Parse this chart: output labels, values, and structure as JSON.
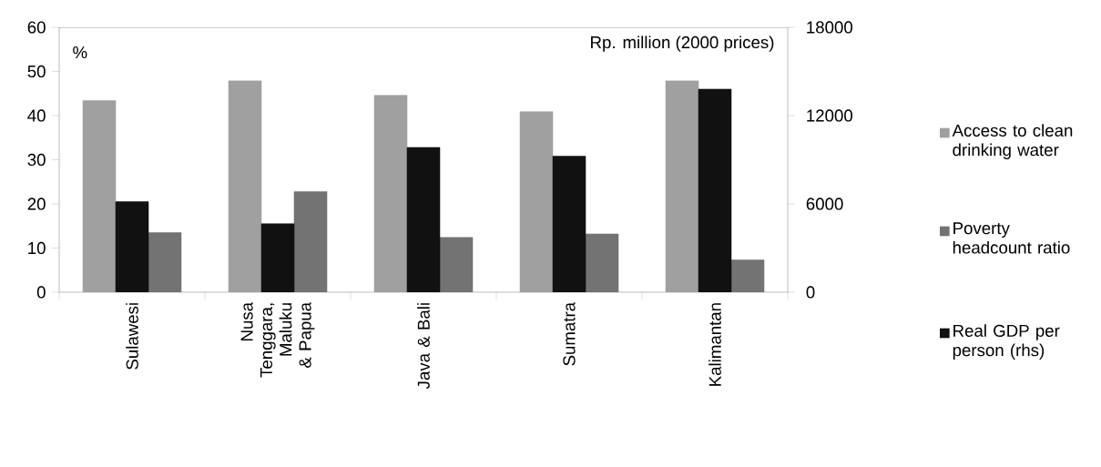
{
  "chart_data": {
    "type": "bar",
    "categories": [
      "Sulawesi",
      "Nusa Tenggara, Maluku & Papua",
      "Java & Bali",
      "Sumatra",
      "Kalimantan"
    ],
    "ylabel": "%",
    "y2label": "Rp. million (2000 prices)",
    "series": [
      {
        "name": "Access to clean drinking water",
        "color": "#a0a0a0",
        "values": [
          43.4,
          47.9,
          44.6,
          40.9,
          47.9
        ]
      },
      {
        "name": "Poverty headcount ratio",
        "color": "#737373",
        "values": [
          13.5,
          22.8,
          12.4,
          13.2,
          7.3
        ]
      },
      {
        "name": "Real GDP per person (rhs)",
        "color": "#111111",
        "axis": "y2",
        "values": [
          6150,
          4650,
          9840,
          9240,
          13800
        ]
      }
    ],
    "ylim": [
      0,
      60
    ],
    "yticks": [
      0,
      10,
      20,
      30,
      40,
      50,
      60
    ],
    "y2lim": [
      0,
      18000
    ],
    "y2ticks": [
      0,
      6000,
      12000,
      18000
    ],
    "grid": false,
    "legend": "right"
  }
}
